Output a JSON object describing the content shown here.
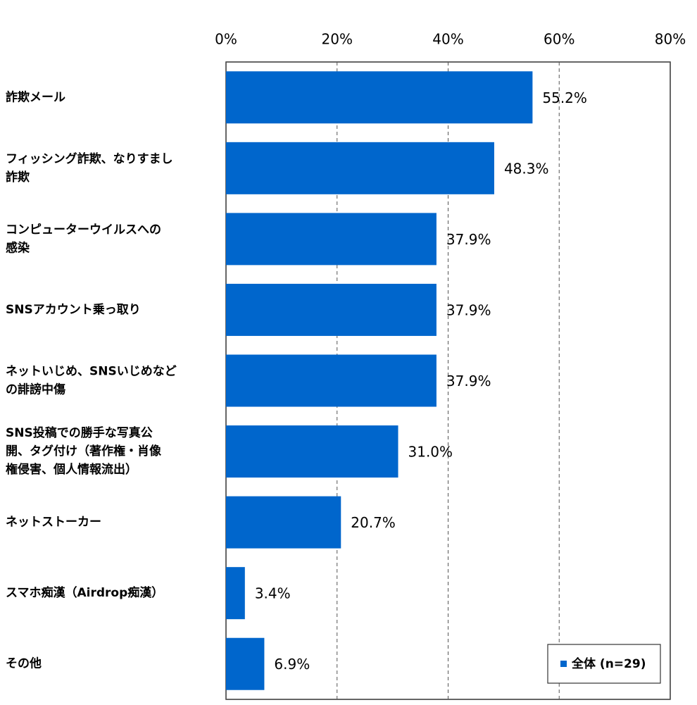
{
  "chart_data": {
    "type": "bar",
    "orientation": "horizontal",
    "categories": [
      [
        "詐欺メール"
      ],
      [
        "フィッシング詐欺、なりすまし",
        "詐欺"
      ],
      [
        "コンピューターウイルスへの",
        "感染"
      ],
      [
        "SNSアカウント乗っ取り"
      ],
      [
        "ネットいじめ、SNSいじめなど",
        "の誹謗中傷"
      ],
      [
        "SNS投稿での勝手な写真公",
        "開、タグ付け（著作権・肖像",
        "権侵害、個人情報流出）"
      ],
      [
        "ネットストーカー"
      ],
      [
        "スマホ痴漢（Airdrop痴漢）"
      ],
      [
        "その他"
      ]
    ],
    "series": [
      {
        "name": "全体 (n=29)",
        "color": "#0066cc",
        "values": [
          55.2,
          48.3,
          37.9,
          37.9,
          37.9,
          31.0,
          20.7,
          3.4,
          6.9
        ],
        "value_labels": [
          "55.2%",
          "48.3%",
          "37.9%",
          "37.9%",
          "37.9%",
          "31.0%",
          "20.7%",
          "3.4%",
          "6.9%"
        ]
      }
    ],
    "xlim": [
      0,
      80
    ],
    "xticks": [
      {
        "value": 0,
        "label": "0%"
      },
      {
        "value": 20,
        "label": "20%"
      },
      {
        "value": 40,
        "label": "40%"
      },
      {
        "value": 60,
        "label": "60%"
      },
      {
        "value": 80,
        "label": "80%"
      }
    ],
    "grid": true,
    "legend": "bottom-right"
  }
}
